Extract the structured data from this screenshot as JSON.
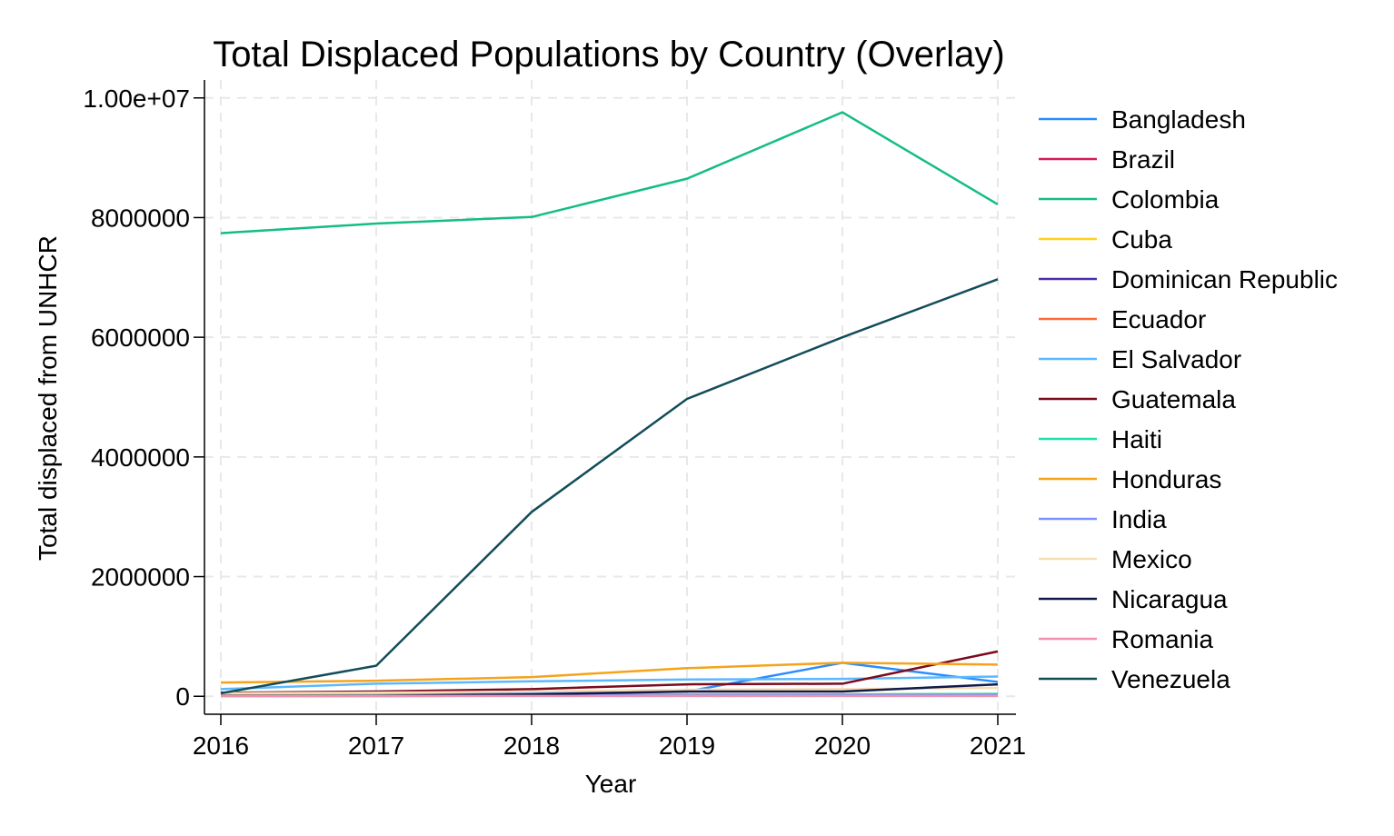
{
  "chart_data": {
    "type": "line",
    "title": "Total Displaced Populations by Country (Overlay)",
    "xlabel": "Year",
    "ylabel": "Total displaced from UNHCR",
    "x": [
      2016,
      2017,
      2018,
      2019,
      2020,
      2021
    ],
    "xlim": [
      2016,
      2021
    ],
    "ylim": [
      -300000,
      10300000
    ],
    "yticks": [
      0,
      2000000,
      4000000,
      6000000,
      8000000,
      10000000
    ],
    "ytick_labels": [
      "0",
      "2000000",
      "4000000",
      "6000000",
      "8000000",
      "1.00e+07"
    ],
    "xtick_labels": [
      "2016",
      "2017",
      "2018",
      "2019",
      "2020",
      "2021"
    ],
    "grid": true,
    "legend_position": "right",
    "series": [
      {
        "name": "Bangladesh",
        "color": "#2b8cff",
        "values": [
          40000,
          40000,
          50000,
          80000,
          560000,
          240000
        ]
      },
      {
        "name": "Brazil",
        "color": "#d6195c",
        "values": [
          10000,
          10000,
          15000,
          20000,
          20000,
          30000
        ]
      },
      {
        "name": "Colombia",
        "color": "#14bd84",
        "values": [
          7740000,
          7900000,
          8010000,
          8650000,
          9760000,
          8220000
        ]
      },
      {
        "name": "Cuba",
        "color": "#ffd21f",
        "values": [
          20000,
          20000,
          25000,
          30000,
          30000,
          40000
        ]
      },
      {
        "name": "Dominican Republic",
        "color": "#4b30a8",
        "values": [
          5000,
          5000,
          8000,
          10000,
          10000,
          15000
        ]
      },
      {
        "name": "Ecuador",
        "color": "#ff6a3d",
        "values": [
          5000,
          5000,
          8000,
          10000,
          15000,
          20000
        ]
      },
      {
        "name": "El Salvador",
        "color": "#5bb8ff",
        "values": [
          120000,
          210000,
          250000,
          280000,
          290000,
          330000
        ]
      },
      {
        "name": "Guatemala",
        "color": "#7a0a1e",
        "values": [
          60000,
          80000,
          120000,
          200000,
          210000,
          750000
        ]
      },
      {
        "name": "Haiti",
        "color": "#1fe0a6",
        "values": [
          10000,
          15000,
          20000,
          25000,
          30000,
          40000
        ]
      },
      {
        "name": "Honduras",
        "color": "#f5a31a",
        "values": [
          230000,
          260000,
          320000,
          470000,
          560000,
          530000
        ]
      },
      {
        "name": "India",
        "color": "#7b92ff",
        "values": [
          10000,
          10000,
          15000,
          20000,
          20000,
          25000
        ]
      },
      {
        "name": "Mexico",
        "color": "#f7dcb4",
        "values": [
          50000,
          60000,
          80000,
          110000,
          120000,
          140000
        ]
      },
      {
        "name": "Nicaragua",
        "color": "#111a4a",
        "values": [
          10000,
          10000,
          30000,
          80000,
          80000,
          200000
        ]
      },
      {
        "name": "Romania",
        "color": "#f290b0",
        "values": [
          5000,
          5000,
          5000,
          5000,
          5000,
          5000
        ]
      },
      {
        "name": "Venezuela",
        "color": "#124d58",
        "values": [
          50000,
          510000,
          3080000,
          4970000,
          6000000,
          6970000
        ]
      }
    ]
  }
}
